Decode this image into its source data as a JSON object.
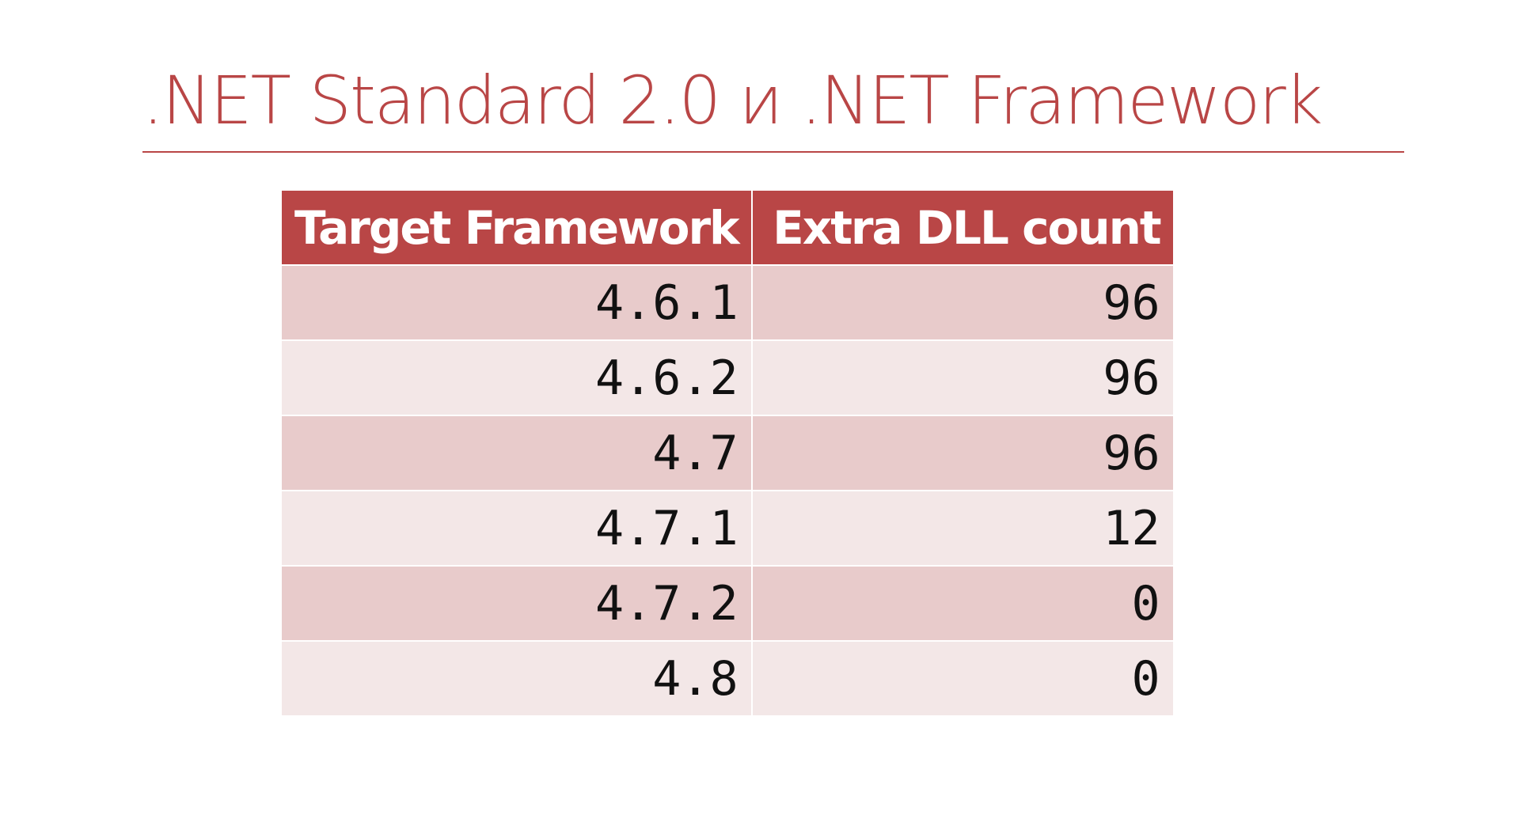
{
  "slide": {
    "title": ".NET Standard 2.0 и .NET Framework"
  },
  "table": {
    "headers": [
      "Target Framework",
      "Extra DLL count"
    ],
    "rows": [
      [
        "4.6.1",
        "96"
      ],
      [
        "4.6.2",
        "96"
      ],
      [
        "4.7",
        "96"
      ],
      [
        "4.7.1",
        "12"
      ],
      [
        "4.7.2",
        "0"
      ],
      [
        "4.8",
        "0"
      ]
    ]
  },
  "colors": {
    "accent": "#b94646",
    "row_odd": "#e8cbcb",
    "row_even": "#f3e7e7"
  }
}
